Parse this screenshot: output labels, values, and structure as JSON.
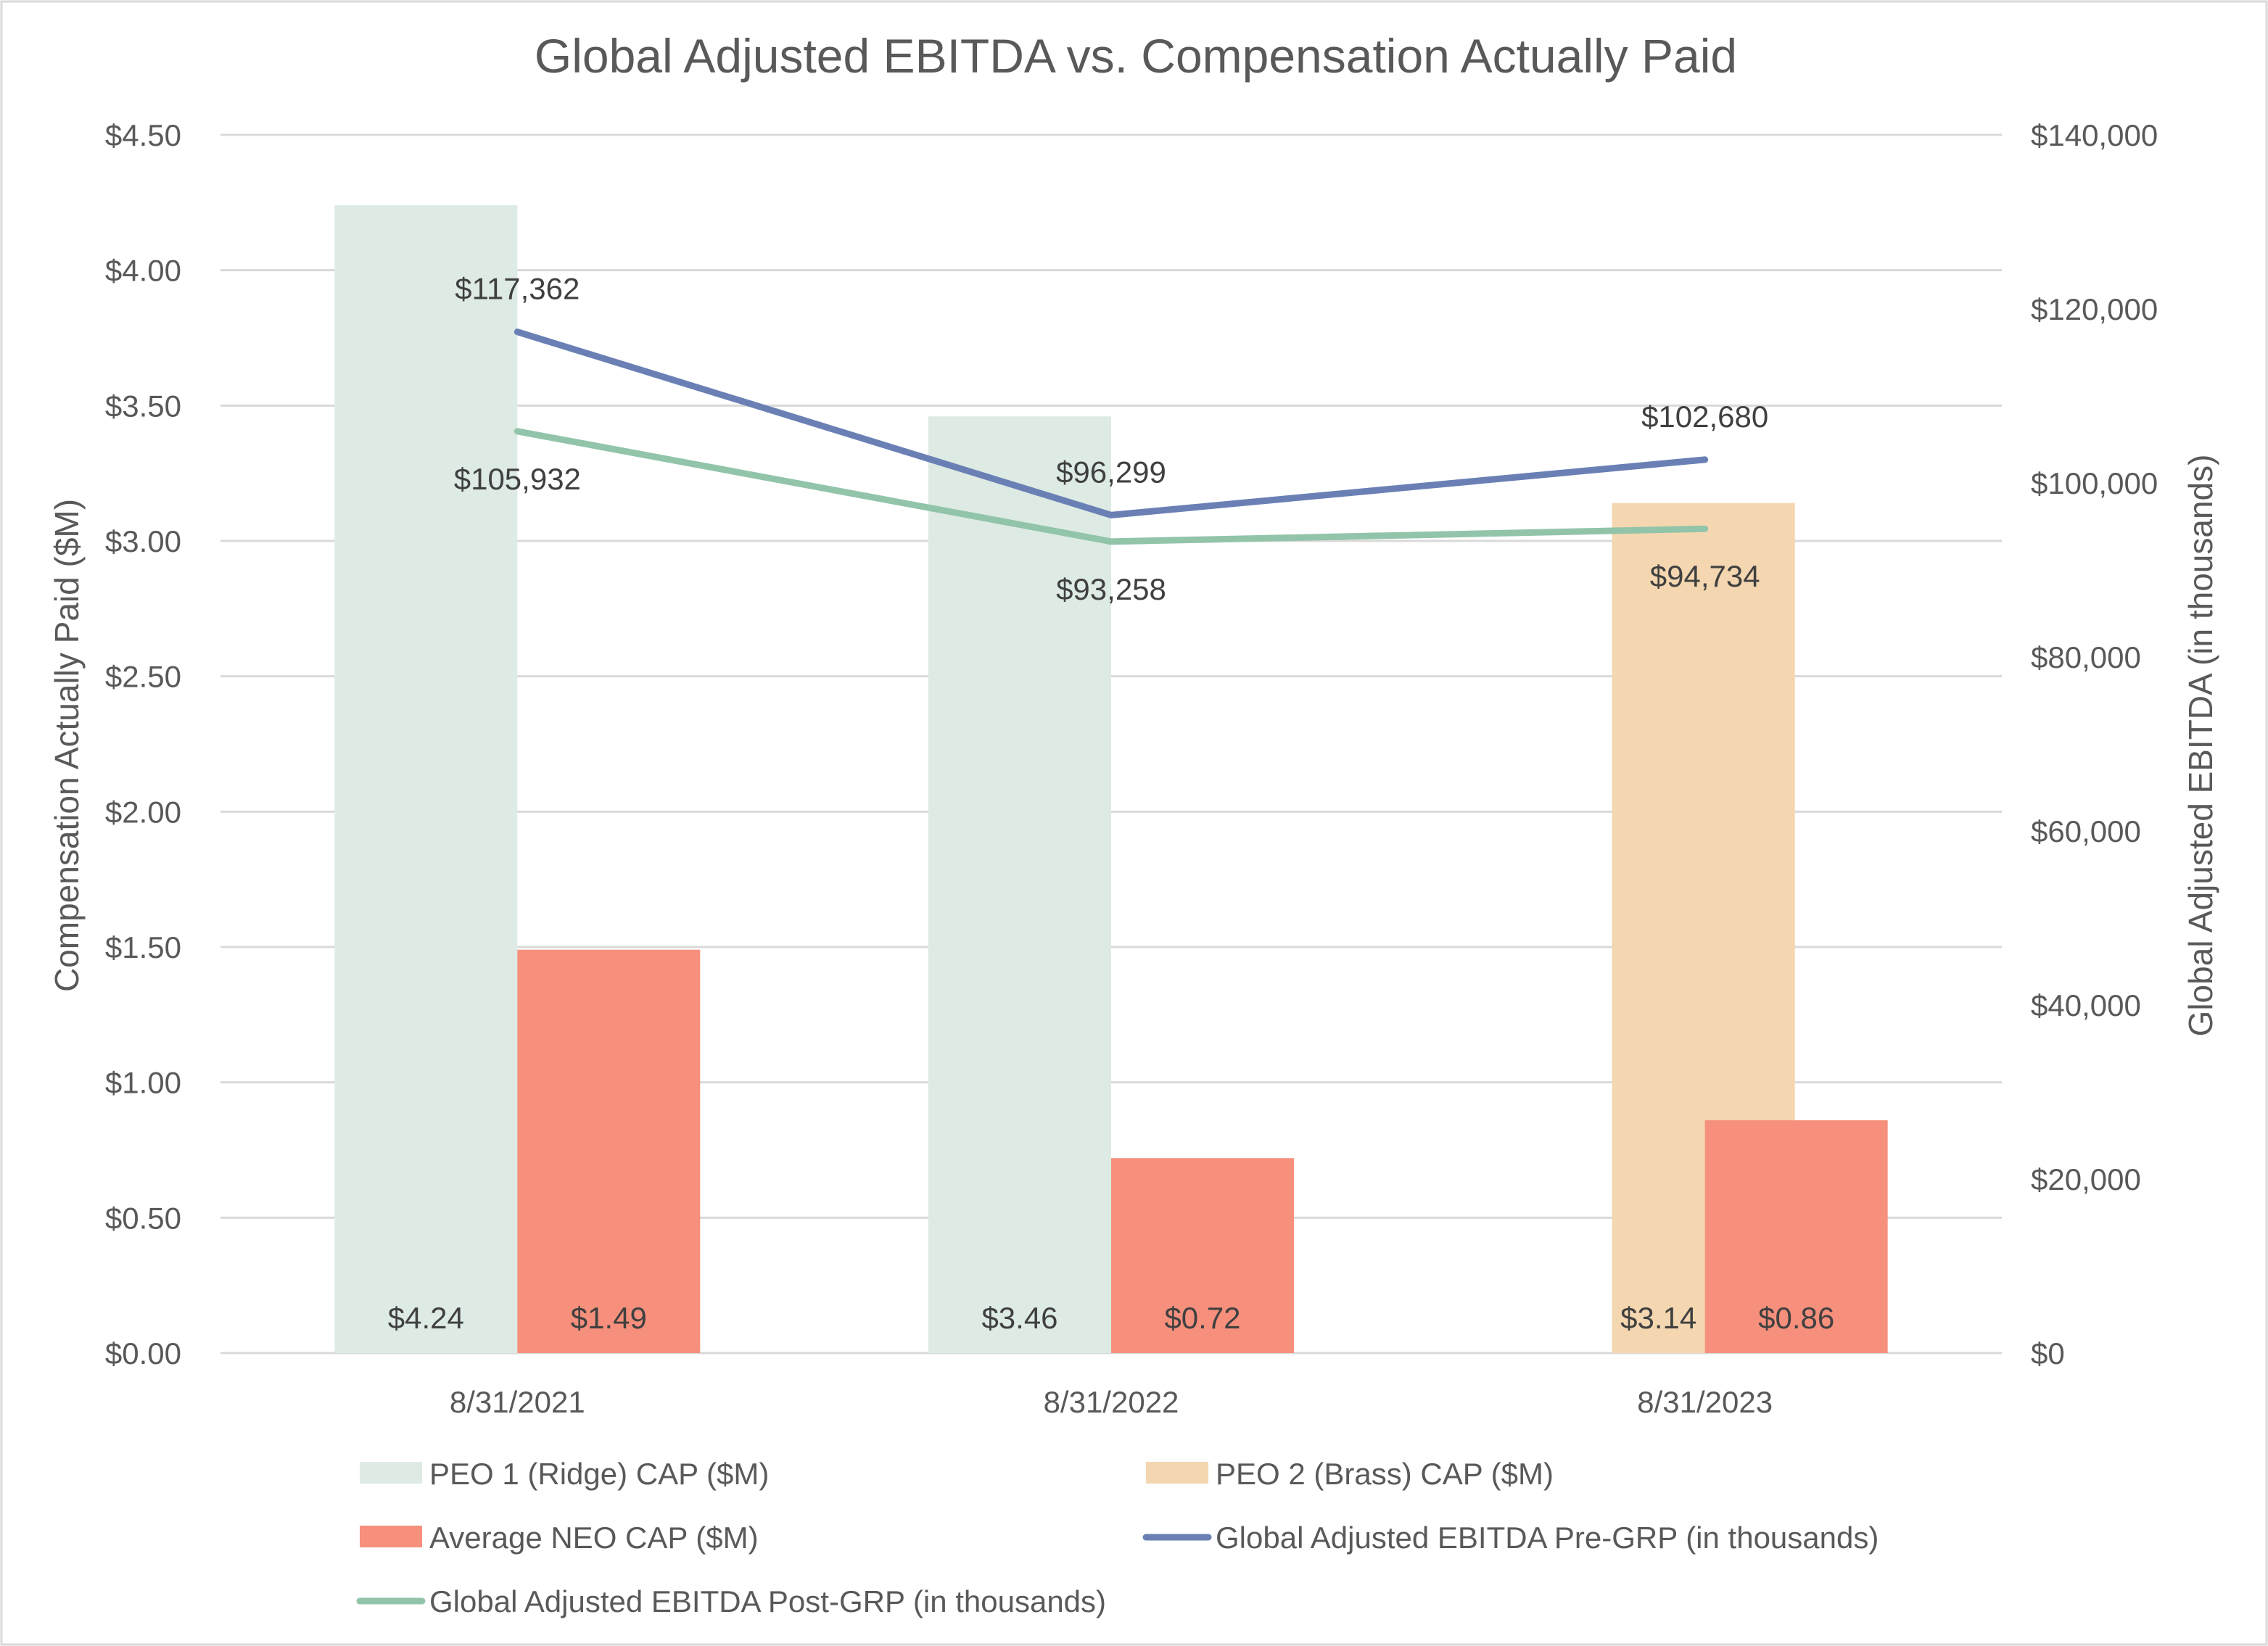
{
  "chart_data": {
    "type": "bar+line",
    "title": "Global Adjusted EBITDA vs. Compensation Actually Paid",
    "ylabel_left": "Compensation Actually Paid ($M)",
    "ylabel_right": "Global Adjusted EBITDA (in thousands)",
    "categories": [
      "8/31/2021",
      "8/31/2022",
      "8/31/2023"
    ],
    "ylim_left": [
      0,
      4.5
    ],
    "ylim_right": [
      0,
      140000
    ],
    "left_ticks": [
      "$0.00",
      "$0.50",
      "$1.00",
      "$1.50",
      "$2.00",
      "$2.50",
      "$3.00",
      "$3.50",
      "$4.00",
      "$4.50"
    ],
    "right_ticks": [
      "$0",
      "$20,000",
      "$40,000",
      "$60,000",
      "$80,000",
      "$100,000",
      "$120,000",
      "$140,000"
    ],
    "grid": true,
    "legend_position": "bottom",
    "series": [
      {
        "name": "PEO 1 (Ridge) CAP ($M)",
        "kind": "bar",
        "axis": "left",
        "color": "#DDEBE4",
        "values": [
          4.24,
          3.46,
          null
        ],
        "labels": [
          "$4.24",
          "$3.46",
          null
        ]
      },
      {
        "name": "PEO 2 (Brass) CAP ($M)",
        "kind": "bar",
        "axis": "left",
        "color": "#F4D7B0",
        "values": [
          null,
          null,
          3.14
        ],
        "labels": [
          null,
          null,
          "$3.14"
        ]
      },
      {
        "name": "Average NEO CAP ($M)",
        "kind": "bar",
        "axis": "left",
        "color": "#F6907C",
        "values": [
          1.49,
          0.72,
          0.86
        ],
        "labels": [
          "$1.49",
          "$0.72",
          "$0.86"
        ]
      },
      {
        "name": "Global Adjusted EBITDA Pre-GRP (in thousands)",
        "kind": "line",
        "axis": "right",
        "color": "#6A80B5",
        "values": [
          117362,
          96299,
          102680
        ],
        "labels": [
          "$117,362",
          "$96,299",
          "$102,680"
        ]
      },
      {
        "name": "Global Adjusted EBITDA Post-GRP (in thousands)",
        "kind": "line",
        "axis": "right",
        "color": "#92C4A9",
        "values": [
          105932,
          93258,
          94734
        ],
        "labels": [
          "$105,932",
          "$93,258",
          "$94,734"
        ]
      }
    ]
  }
}
